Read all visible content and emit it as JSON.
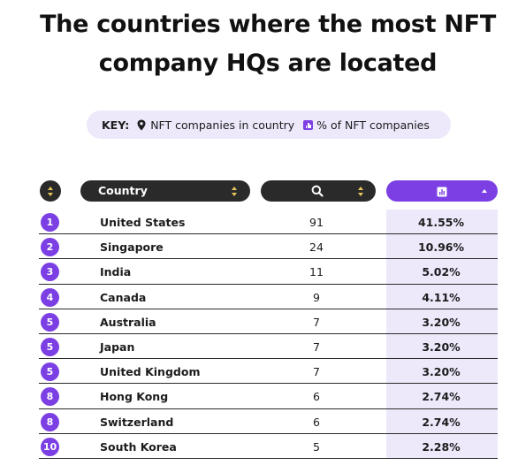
{
  "title": {
    "line1": "The countries where the most NFT",
    "line2": "company HQs are located"
  },
  "key": {
    "label": "KEY:",
    "item1_icon": "location-pin-icon",
    "item1_text": "NFT companies in country",
    "item2_icon": "bar-chart-icon",
    "item2_text": "% of NFT companies"
  },
  "header": {
    "rank_icon": "sort-icon",
    "country_label": "Country",
    "count_icon": "search-icon",
    "pct_icon": "bar-chart-icon",
    "pct_sort": "ascending-arrow"
  },
  "colors": {
    "accent": "#7b3fe4",
    "accent_light": "#ede9fb",
    "dark": "#2a2a2a",
    "sort_arrow": "#e8c65a"
  },
  "rows": [
    {
      "rank": "1",
      "country": "United States",
      "count": "91",
      "pct": "41.55%"
    },
    {
      "rank": "2",
      "country": "Singapore",
      "count": "24",
      "pct": "10.96%"
    },
    {
      "rank": "3",
      "country": "India",
      "count": "11",
      "pct": "5.02%"
    },
    {
      "rank": "4",
      "country": "Canada",
      "count": "9",
      "pct": "4.11%"
    },
    {
      "rank": "5",
      "country": "Australia",
      "count": "7",
      "pct": "3.20%"
    },
    {
      "rank": "5",
      "country": "Japan",
      "count": "7",
      "pct": "3.20%"
    },
    {
      "rank": "5",
      "country": "United Kingdom",
      "count": "7",
      "pct": "3.20%"
    },
    {
      "rank": "8",
      "country": "Hong Kong",
      "count": "6",
      "pct": "2.74%"
    },
    {
      "rank": "8",
      "country": "Switzerland",
      "count": "6",
      "pct": "2.74%"
    },
    {
      "rank": "10",
      "country": "South Korea",
      "count": "5",
      "pct": "2.28%"
    }
  ]
}
